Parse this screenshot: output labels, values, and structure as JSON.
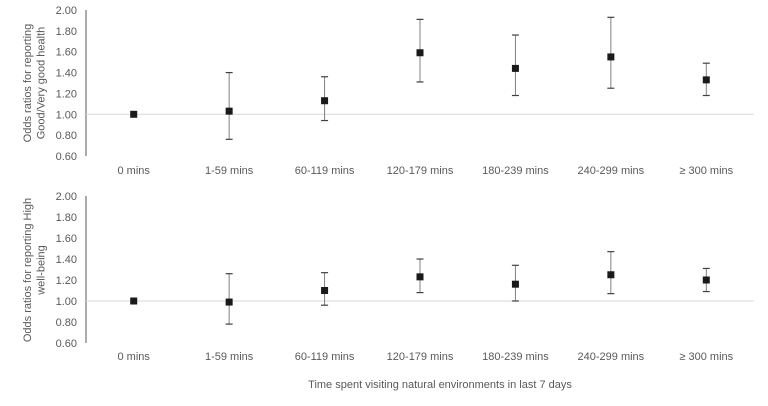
{
  "chart_data": [
    {
      "type": "scatter",
      "ylabel": [
        "Odds ratios for reporting",
        "Good/Very good health"
      ],
      "categories": [
        "0 mins",
        "1-59 mins",
        "60-119 mins",
        "120-179 mins",
        "180-239 mins",
        "240-299 mins",
        "≥ 300 mins"
      ],
      "values": [
        1.0,
        1.03,
        1.13,
        1.59,
        1.44,
        1.55,
        1.33
      ],
      "ci_low": [
        1.0,
        0.76,
        0.94,
        1.31,
        1.18,
        1.25,
        1.18
      ],
      "ci_high": [
        1.0,
        1.4,
        1.36,
        1.91,
        1.76,
        1.93,
        1.49
      ],
      "ylim": [
        0.6,
        2.0
      ],
      "yticks": [
        "0.60",
        "0.80",
        "1.00",
        "1.20",
        "1.40",
        "1.60",
        "1.80",
        "2.00"
      ],
      "reference_line": 1.0,
      "marker_color": "#1a1a1a",
      "error_bar_color": "#808080",
      "reference_line_color": "#d9d9d9"
    },
    {
      "type": "scatter",
      "ylabel": [
        "Odds ratios for reporting High",
        "well-being"
      ],
      "categories": [
        "0 mins",
        "1-59 mins",
        "60-119 mins",
        "120-179 mins",
        "180-239 mins",
        "240-299 mins",
        "≥ 300 mins"
      ],
      "values": [
        1.0,
        0.99,
        1.1,
        1.23,
        1.16,
        1.25,
        1.2
      ],
      "ci_low": [
        1.0,
        0.78,
        0.96,
        1.08,
        1.0,
        1.07,
        1.09
      ],
      "ci_high": [
        1.0,
        1.26,
        1.27,
        1.4,
        1.34,
        1.47,
        1.31
      ],
      "ylim": [
        0.6,
        2.0
      ],
      "yticks": [
        "0.60",
        "0.80",
        "1.00",
        "1.20",
        "1.40",
        "1.60",
        "1.80",
        "2.00"
      ],
      "reference_line": 1.0,
      "marker_color": "#1a1a1a",
      "error_bar_color": "#808080",
      "reference_line_color": "#d9d9d9"
    }
  ],
  "xlabel": "Time spent visiting natural environments in last 7 days"
}
